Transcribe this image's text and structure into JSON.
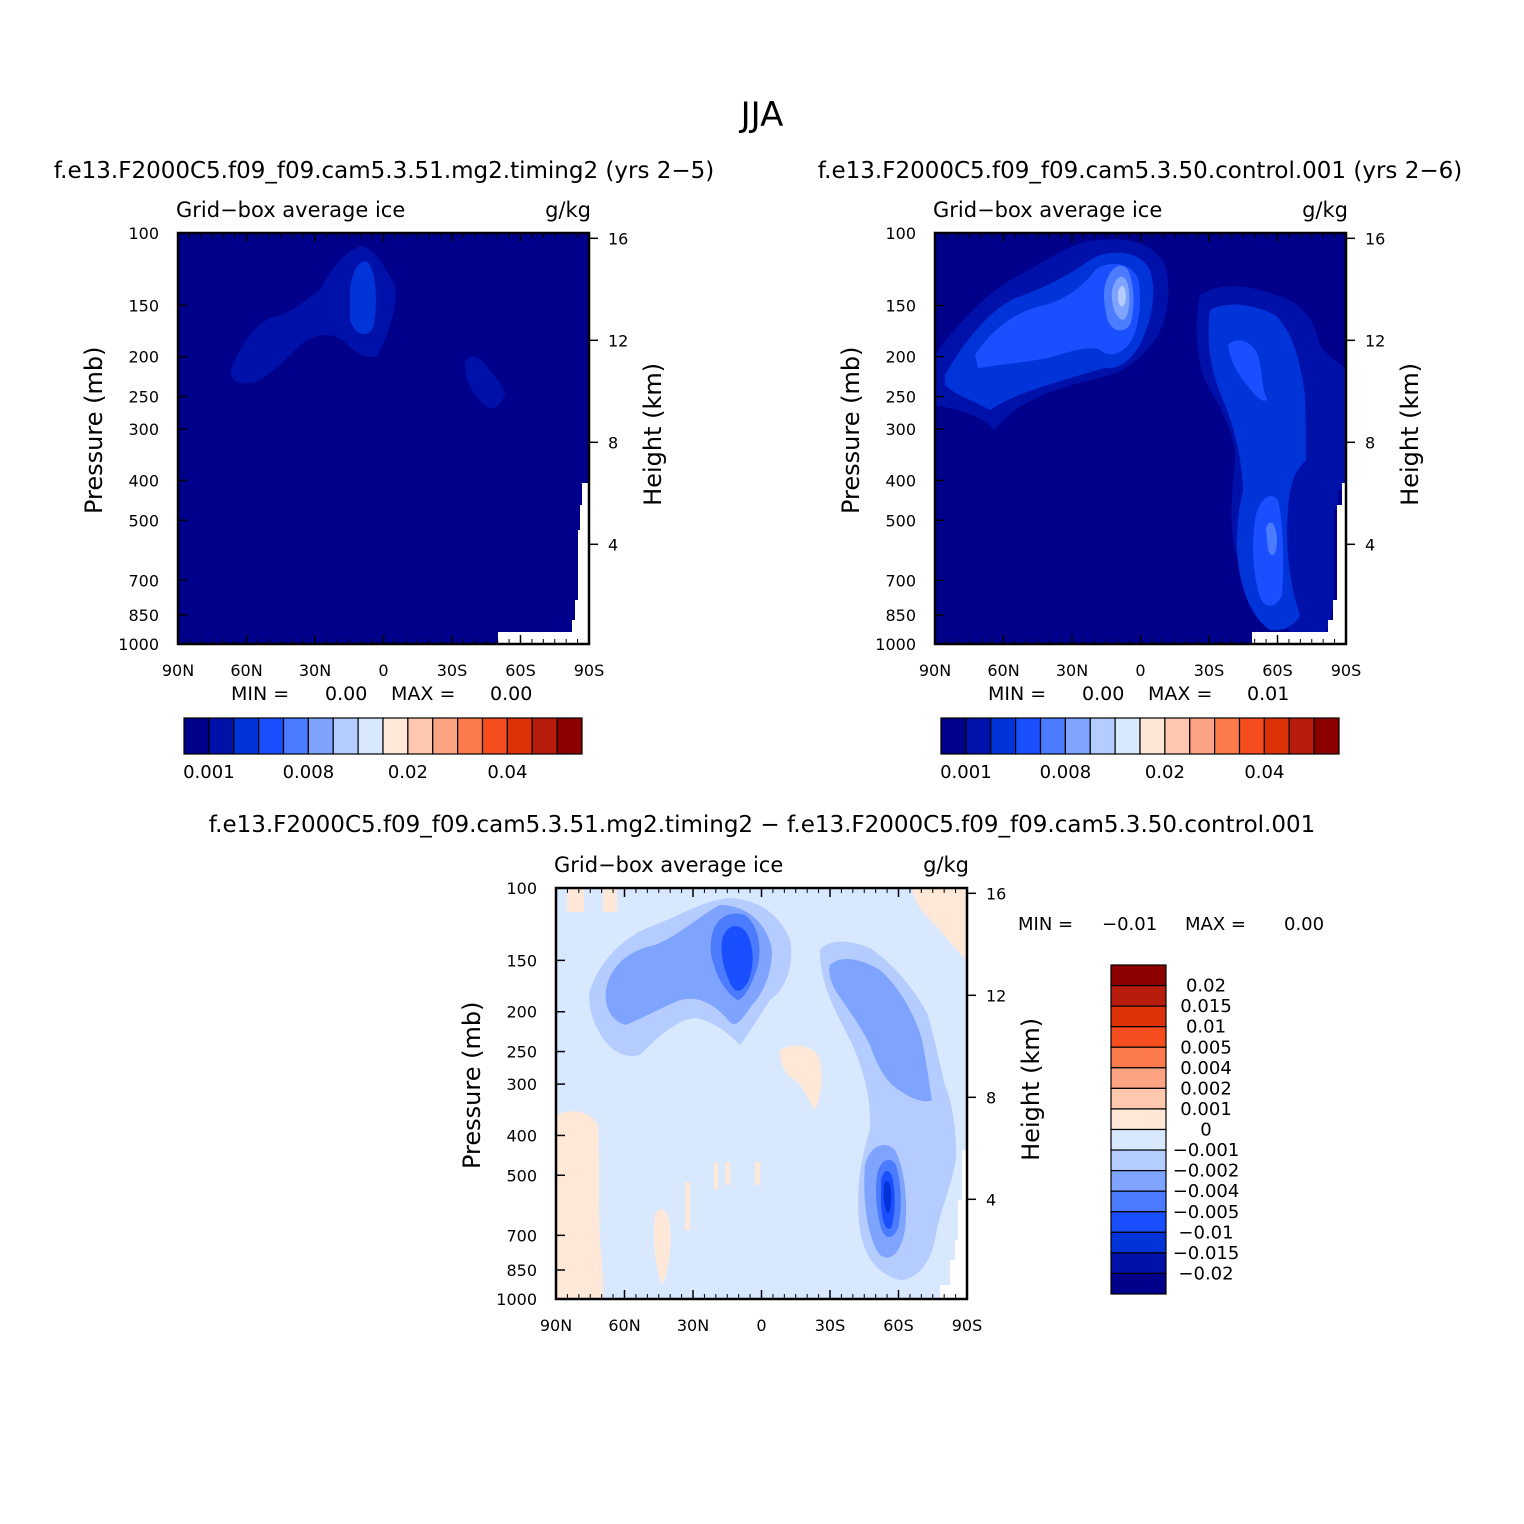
{
  "figure": {
    "season": "JJA"
  },
  "chart_data": [
    {
      "type": "contour",
      "panel": "case",
      "title": "f.e13.F2000C5.f09_f09.cam5.3.51.mg2.timing2 (yrs 2−5)",
      "left_label": "Grid−box average ice",
      "units": "g/kg",
      "ylabel": "Pressure (mb)",
      "ylabel_right": "Height (km)",
      "x_ticks": [
        "90N",
        "60N",
        "30N",
        "0",
        "30S",
        "60S",
        "90S"
      ],
      "y_ticks": [
        "100",
        "150",
        "200",
        "250",
        "300",
        "400",
        "500",
        "700",
        "850",
        "1000"
      ],
      "y_ticks_right": [
        "16",
        "12",
        "8",
        "4"
      ],
      "min_label": "MIN =",
      "min_value": "0.00",
      "max_label": "MAX =",
      "max_value": "0.00",
      "colorbar_labels": [
        "0.001",
        "0.008",
        "0.02",
        "0.04"
      ],
      "colorbar_colors": [
        "#00008b",
        "#0011aa",
        "#0033d8",
        "#1a4fff",
        "#4b7bff",
        "#7fa4ff",
        "#b5ccff",
        "#d8e8ff",
        "#ffe8d8",
        "#fdc8ae",
        "#fca384",
        "#fd7a4c",
        "#f64d1e",
        "#dd3108",
        "#b71c0c",
        "#8c0000"
      ]
    },
    {
      "type": "contour",
      "panel": "control",
      "title": "f.e13.F2000C5.f09_f09.cam5.3.50.control.001 (yrs 2−6)",
      "left_label": "Grid−box average ice",
      "units": "g/kg",
      "ylabel": "Pressure (mb)",
      "ylabel_right": "Height (km)",
      "x_ticks": [
        "90N",
        "60N",
        "30N",
        "0",
        "30S",
        "60S",
        "90S"
      ],
      "y_ticks": [
        "100",
        "150",
        "200",
        "250",
        "300",
        "400",
        "500",
        "700",
        "850",
        "1000"
      ],
      "y_ticks_right": [
        "16",
        "12",
        "8",
        "4"
      ],
      "min_label": "MIN =",
      "min_value": "0.00",
      "max_label": "MAX =",
      "max_value": "0.01",
      "colorbar_labels": [
        "0.001",
        "0.008",
        "0.02",
        "0.04"
      ],
      "colorbar_colors": [
        "#00008b",
        "#0011aa",
        "#0033d8",
        "#1a4fff",
        "#4b7bff",
        "#7fa4ff",
        "#b5ccff",
        "#d8e8ff",
        "#ffe8d8",
        "#fdc8ae",
        "#fca384",
        "#fd7a4c",
        "#f64d1e",
        "#dd3108",
        "#b71c0c",
        "#8c0000"
      ]
    },
    {
      "type": "contour",
      "panel": "difference",
      "title": "f.e13.F2000C5.f09_f09.cam5.3.51.mg2.timing2 − f.e13.F2000C5.f09_f09.cam5.3.50.control.001",
      "left_label": "Grid−box average ice",
      "units": "g/kg",
      "ylabel": "Pressure (mb)",
      "ylabel_right": "Height (km)",
      "x_ticks": [
        "90N",
        "60N",
        "30N",
        "0",
        "30S",
        "60S",
        "90S"
      ],
      "y_ticks": [
        "100",
        "150",
        "200",
        "250",
        "300",
        "400",
        "500",
        "700",
        "850",
        "1000"
      ],
      "y_ticks_right": [
        "16",
        "12",
        "8",
        "4"
      ],
      "min_label": "MIN =",
      "min_value": "−0.01",
      "max_label": "MAX =",
      "max_value": "0.00",
      "colorbar_labels": [
        "0.02",
        "0.015",
        "0.01",
        "0.005",
        "0.004",
        "0.002",
        "0.001",
        "0",
        "−0.001",
        "−0.002",
        "−0.004",
        "−0.005",
        "−0.01",
        "−0.015",
        "−0.02"
      ],
      "colorbar_colors": [
        "#8c0000",
        "#b71c0c",
        "#dd3108",
        "#f64d1e",
        "#fd7a4c",
        "#fca384",
        "#fdc8ae",
        "#ffe8d8",
        "#d8e8ff",
        "#b5ccff",
        "#7fa4ff",
        "#4b7bff",
        "#1a4fff",
        "#0033d8",
        "#0011aa",
        "#00008b"
      ]
    }
  ]
}
